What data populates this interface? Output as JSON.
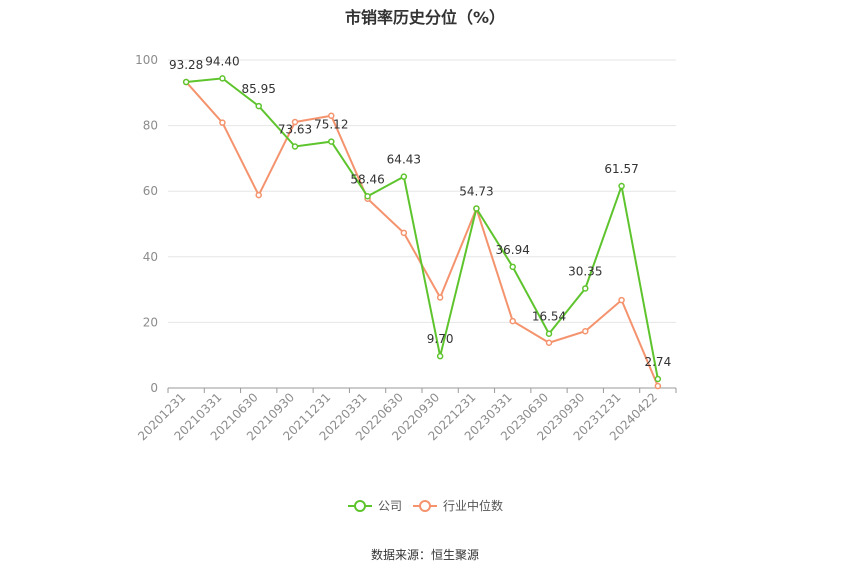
{
  "title": "市销率历史分位（%）",
  "source": "数据来源：恒生聚源",
  "colors": {
    "company": "#5ec42d",
    "industry": "#f4936d"
  },
  "chart_data": {
    "type": "line",
    "title": "市销率历史分位（%）",
    "categories": [
      "20201231",
      "20210331",
      "20210630",
      "20210930",
      "20211231",
      "20220331",
      "20220630",
      "20220930",
      "20221231",
      "20230331",
      "20230630",
      "20230930",
      "20231231",
      "20240422"
    ],
    "ylim": [
      0,
      100
    ],
    "yticks": [
      0,
      20,
      40,
      60,
      80,
      100
    ],
    "grid": true,
    "legend_position": "bottom-center",
    "series": [
      {
        "name": "公司",
        "color": "#5ec42d",
        "values": [
          93.28,
          94.4,
          85.95,
          73.63,
          75.12,
          58.46,
          64.43,
          9.7,
          54.73,
          36.94,
          16.54,
          30.35,
          61.57,
          2.74
        ],
        "labels": [
          "93.28",
          "94.40",
          "85.95",
          "73.63",
          "75.12",
          "58.46",
          "64.43",
          "9.70",
          "54.73",
          "36.94",
          "16.54",
          "30.35",
          "61.57",
          "2.74"
        ]
      },
      {
        "name": "行业中位数",
        "color": "#f4936d",
        "values": [
          93.3,
          80.9,
          58.8,
          81.1,
          83.0,
          57.7,
          47.3,
          27.6,
          54.7,
          20.4,
          13.8,
          17.3,
          26.8,
          0.6
        ]
      }
    ]
  }
}
